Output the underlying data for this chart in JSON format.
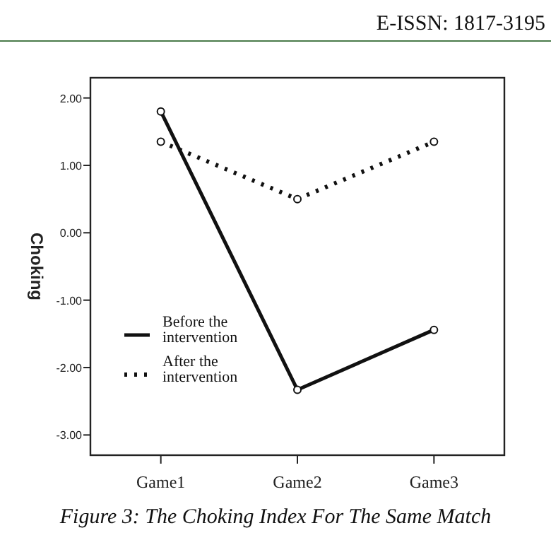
{
  "chart_data": {
    "type": "line",
    "title": "Figure 3: The Choking Index For The Same Match",
    "ylabel": "Choking",
    "annotations": [
      "E-ISSN: 1817-3195"
    ],
    "categories": [
      "Game1",
      "Game2",
      "Game3"
    ],
    "series": [
      {
        "name": "Before the intervention",
        "color": "#111111",
        "values": [
          1.8,
          -2.33,
          -1.44
        ],
        "line_style": "solid"
      },
      {
        "name": "After the intervention",
        "color": "#111111",
        "values": [
          1.35,
          0.5,
          1.35
        ],
        "line_style": "dotted"
      }
    ],
    "ylim": [
      -3.3,
      2.3
    ],
    "yticks": [
      {
        "value": -3,
        "label": "-3.00"
      },
      {
        "value": -2,
        "label": "-2.00"
      },
      {
        "value": -1,
        "label": "-1.00"
      },
      {
        "value": 0,
        "label": "0.00"
      },
      {
        "value": 1,
        "label": "1.00"
      },
      {
        "value": 2,
        "label": "2.00"
      }
    ],
    "marker": "circle",
    "legend": "bottom left",
    "grid": false
  }
}
